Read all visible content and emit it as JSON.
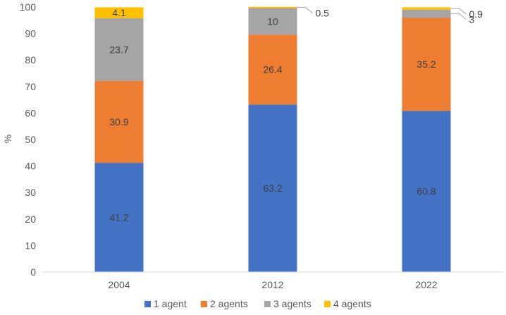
{
  "chart_data": {
    "type": "bar",
    "stacked": true,
    "categories": [
      "2004",
      "2012",
      "2022"
    ],
    "series": [
      {
        "name": "1 agent",
        "values": [
          41.2,
          63.2,
          60.8
        ],
        "color": "#4472C4",
        "labels": [
          "41.2",
          "63.2",
          "60.8"
        ]
      },
      {
        "name": "2 agents",
        "values": [
          30.9,
          26.4,
          35.2
        ],
        "color": "#ED7D31",
        "labels": [
          "30.9",
          "26.4",
          "35.2"
        ]
      },
      {
        "name": "3 agents",
        "values": [
          23.7,
          10,
          3
        ],
        "color": "#A5A5A5",
        "labels": [
          "23.7",
          "10",
          "3"
        ]
      },
      {
        "name": "4 agents",
        "values": [
          4.1,
          0.5,
          0.9
        ],
        "color": "#FFC000",
        "labels": [
          "4.1",
          "0.5",
          "0.9"
        ]
      }
    ],
    "ylabel": "%",
    "xlabel": "",
    "ylim": [
      0,
      100
    ],
    "yticks": [
      "0",
      "10",
      "20",
      "30",
      "40",
      "50",
      "60",
      "70",
      "80",
      "90",
      "100"
    ],
    "grid": false,
    "legend_position": "bottom"
  }
}
